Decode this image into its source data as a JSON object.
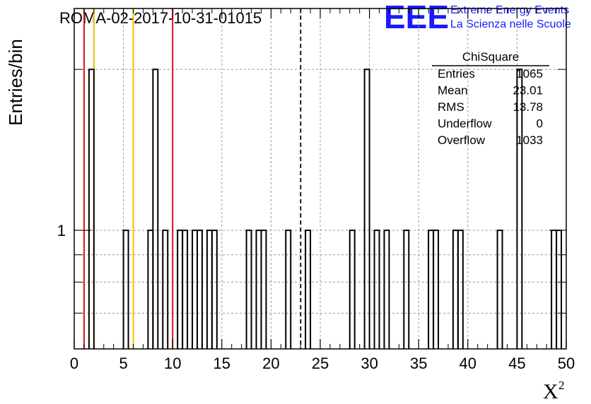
{
  "title": "ROMA-02-2017-10-31-01015",
  "logo": {
    "mark": "EEE",
    "line1": "Extreme Energy Events",
    "line2": "La Scienza nelle Scuole",
    "color": "#1a1aff"
  },
  "stats": {
    "name": "ChiSquare",
    "rows": [
      {
        "label": "Entries",
        "value": "1065"
      },
      {
        "label": "Mean",
        "value": "23.01"
      },
      {
        "label": "RMS",
        "value": "13.78"
      },
      {
        "label": "Underflow",
        "value": "0"
      },
      {
        "label": "Overflow",
        "value": "1033"
      }
    ]
  },
  "chart_data": {
    "type": "histogram",
    "xlabel": "X",
    "xlabel_superscript": "2",
    "ylabel": "Entries/bin",
    "xlim": [
      0,
      50
    ],
    "ylim": [
      0.6,
      2.6
    ],
    "y_scale": "log",
    "x_ticks": [
      0,
      5,
      10,
      15,
      20,
      25,
      30,
      35,
      40,
      45,
      50
    ],
    "y_tick_labels": [
      1
    ],
    "grid": true,
    "bin_width": 0.5,
    "bins": [
      {
        "x": 1.5,
        "count": 2
      },
      {
        "x": 5.0,
        "count": 1
      },
      {
        "x": 7.5,
        "count": 1
      },
      {
        "x": 8.0,
        "count": 2
      },
      {
        "x": 9.0,
        "count": 1
      },
      {
        "x": 10.5,
        "count": 1
      },
      {
        "x": 11.0,
        "count": 1
      },
      {
        "x": 12.0,
        "count": 1
      },
      {
        "x": 12.5,
        "count": 1
      },
      {
        "x": 13.5,
        "count": 1
      },
      {
        "x": 14.0,
        "count": 1
      },
      {
        "x": 17.5,
        "count": 1
      },
      {
        "x": 18.5,
        "count": 1
      },
      {
        "x": 19.0,
        "count": 1
      },
      {
        "x": 21.5,
        "count": 1
      },
      {
        "x": 23.5,
        "count": 1
      },
      {
        "x": 28.0,
        "count": 1
      },
      {
        "x": 29.5,
        "count": 2
      },
      {
        "x": 30.5,
        "count": 1
      },
      {
        "x": 31.5,
        "count": 1
      },
      {
        "x": 33.5,
        "count": 1
      },
      {
        "x": 36.0,
        "count": 1
      },
      {
        "x": 36.5,
        "count": 1
      },
      {
        "x": 38.5,
        "count": 1
      },
      {
        "x": 39.0,
        "count": 1
      },
      {
        "x": 43.0,
        "count": 1
      },
      {
        "x": 45.0,
        "count": 2
      },
      {
        "x": 48.5,
        "count": 1
      },
      {
        "x": 49.0,
        "count": 1
      }
    ],
    "markers": [
      {
        "x": 1.0,
        "color": "#dd1111",
        "style": "solid"
      },
      {
        "x": 2.0,
        "color": "#f0c000",
        "style": "solid"
      },
      {
        "x": 6.0,
        "color": "#f0c000",
        "style": "solid"
      },
      {
        "x": 10.0,
        "color": "#dd1111",
        "style": "solid"
      },
      {
        "x": 23.01,
        "color": "#000000",
        "style": "dashed"
      }
    ]
  }
}
